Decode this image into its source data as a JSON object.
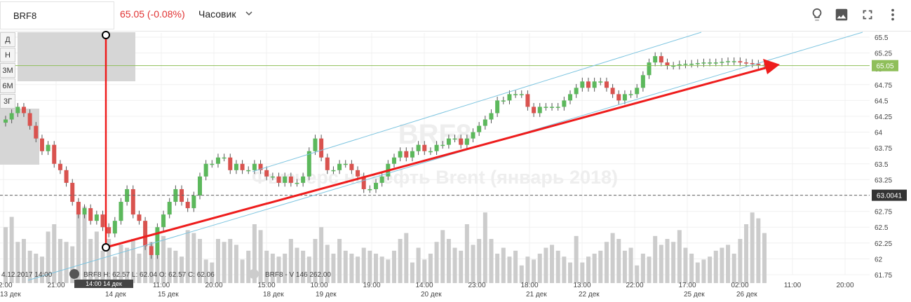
{
  "header": {
    "ticker": "BRF8",
    "price_change": "65.05 (-0.08%)",
    "interval": "Часовик",
    "icons": [
      "lightbulb-icon",
      "image-icon",
      "fullscreen-icon",
      "more-vert-icon"
    ]
  },
  "period_buttons": [
    "Д",
    "Н",
    "3М",
    "6М",
    "3Г"
  ],
  "colors": {
    "up": "#5cb85c",
    "down": "#d9534f",
    "volume": "#cccccc",
    "channel": "#7ec5e0",
    "trend": "#ee1c1c",
    "price_line": "#8fbf5a",
    "level_line": "#666666"
  },
  "chart_data": {
    "type": "candlestick",
    "watermark": [
      "BRF8",
      "Фьючерс на нефть Brent (январь 2018)"
    ],
    "ylim": [
      61.75,
      65.5
    ],
    "yticks": [
      "65.5",
      "65.25",
      "65",
      "64.75",
      "64.5",
      "64.25",
      "64",
      "63.75",
      "63.5",
      "63.25",
      "63",
      "62.75",
      "62.5",
      "62.25",
      "62",
      "61.75"
    ],
    "price_label": "65.05",
    "level_label": "63.0041",
    "time_axis": [
      {
        "time": "12:00",
        "date": "13 дек"
      },
      {
        "time": "21:00",
        "date": ""
      },
      {
        "time": "",
        "date": "14 дек"
      },
      {
        "time": "11:00",
        "date": "15 дек"
      },
      {
        "time": "20:00",
        "date": ""
      },
      {
        "time": "15:00",
        "date": "18 дек"
      },
      {
        "time": "10:00",
        "date": "19 дек"
      },
      {
        "time": "19:00",
        "date": ""
      },
      {
        "time": "14:00",
        "date": "20 дек"
      },
      {
        "time": "23:00",
        "date": ""
      },
      {
        "time": "18:00",
        "date": "21 дек"
      },
      {
        "time": "13:00",
        "date": "22 дек"
      },
      {
        "time": "22:00",
        "date": ""
      },
      {
        "time": "17:00",
        "date": "25 дек"
      },
      {
        "time": "02:00",
        "date": "26 дек"
      },
      {
        "time": "11:00",
        "date": ""
      },
      {
        "time": "20:00",
        "date": ""
      }
    ],
    "crosshair_label": "14:00  14 дек",
    "ohlc_legend": "4.12.2017 14:00",
    "ohlc_values": "BRF8  H: 62.57  L: 62.04  O: 62.57  C: 62.06",
    "volume_legend": "BRF8 - V 146 262.00",
    "closes": [
      64.2,
      64.3,
      64.4,
      64.3,
      64.1,
      63.9,
      63.7,
      63.8,
      63.5,
      63.4,
      63.2,
      62.9,
      62.7,
      62.8,
      62.6,
      62.7,
      62.5,
      62.4,
      62.6,
      62.9,
      63.1,
      62.7,
      62.6,
      62.2,
      62.06,
      62.5,
      62.7,
      62.9,
      63.1,
      62.9,
      62.8,
      63.0,
      63.3,
      63.5,
      63.5,
      63.6,
      63.6,
      63.4,
      63.5,
      63.4,
      63.4,
      63.5,
      63.4,
      63.3,
      63.3,
      63.2,
      63.3,
      63.2,
      63.2,
      63.3,
      63.7,
      63.9,
      63.6,
      63.4,
      63.4,
      63.5,
      63.5,
      63.4,
      63.3,
      63.1,
      63.1,
      63.2,
      63.3,
      63.5,
      63.6,
      63.7,
      63.6,
      63.7,
      63.8,
      63.7,
      63.7,
      63.8,
      63.8,
      63.9,
      63.9,
      63.8,
      63.9,
      64.0,
      64.1,
      64.2,
      64.3,
      64.5,
      64.5,
      64.6,
      64.6,
      64.6,
      64.4,
      64.3,
      64.4,
      64.4,
      64.4,
      64.4,
      64.5,
      64.6,
      64.7,
      64.8,
      64.7,
      64.8,
      64.8,
      64.7,
      64.6,
      64.5,
      64.6,
      64.6,
      64.7,
      64.9,
      65.1,
      65.2,
      65.1,
      65.05,
      65.05,
      65.07,
      65.08,
      65.08,
      65.09,
      65.1,
      65.1,
      65.1,
      65.11,
      65.12,
      65.12,
      65.1,
      65.09,
      65.08,
      65.06,
      65.05
    ],
    "volumes": [
      38,
      45,
      28,
      30,
      22,
      20,
      18,
      35,
      40,
      30,
      28,
      25,
      48,
      52,
      30,
      35,
      22,
      30,
      18,
      26,
      24,
      30,
      20,
      26,
      28,
      26,
      32,
      24,
      22,
      18,
      36,
      34,
      30,
      16,
      14,
      30,
      28,
      30,
      26,
      16,
      22,
      40,
      36,
      22,
      20,
      18,
      20,
      30,
      24,
      22,
      18,
      30,
      38,
      26,
      20,
      30,
      22,
      20,
      18,
      24,
      22,
      20,
      18,
      16,
      22,
      30,
      34,
      14,
      24,
      16,
      20,
      28,
      36,
      30,
      24,
      22,
      40,
      26,
      30,
      48,
      30,
      20,
      24,
      18,
      22,
      12,
      18,
      16,
      20,
      24,
      26,
      22,
      18,
      14,
      32,
      14,
      18,
      20,
      22,
      28,
      34,
      30,
      22,
      24,
      12,
      20,
      18,
      32,
      26,
      30,
      28,
      36,
      24,
      20,
      14,
      16,
      18,
      22,
      24,
      26,
      20,
      30,
      40,
      48,
      44,
      34
    ]
  }
}
